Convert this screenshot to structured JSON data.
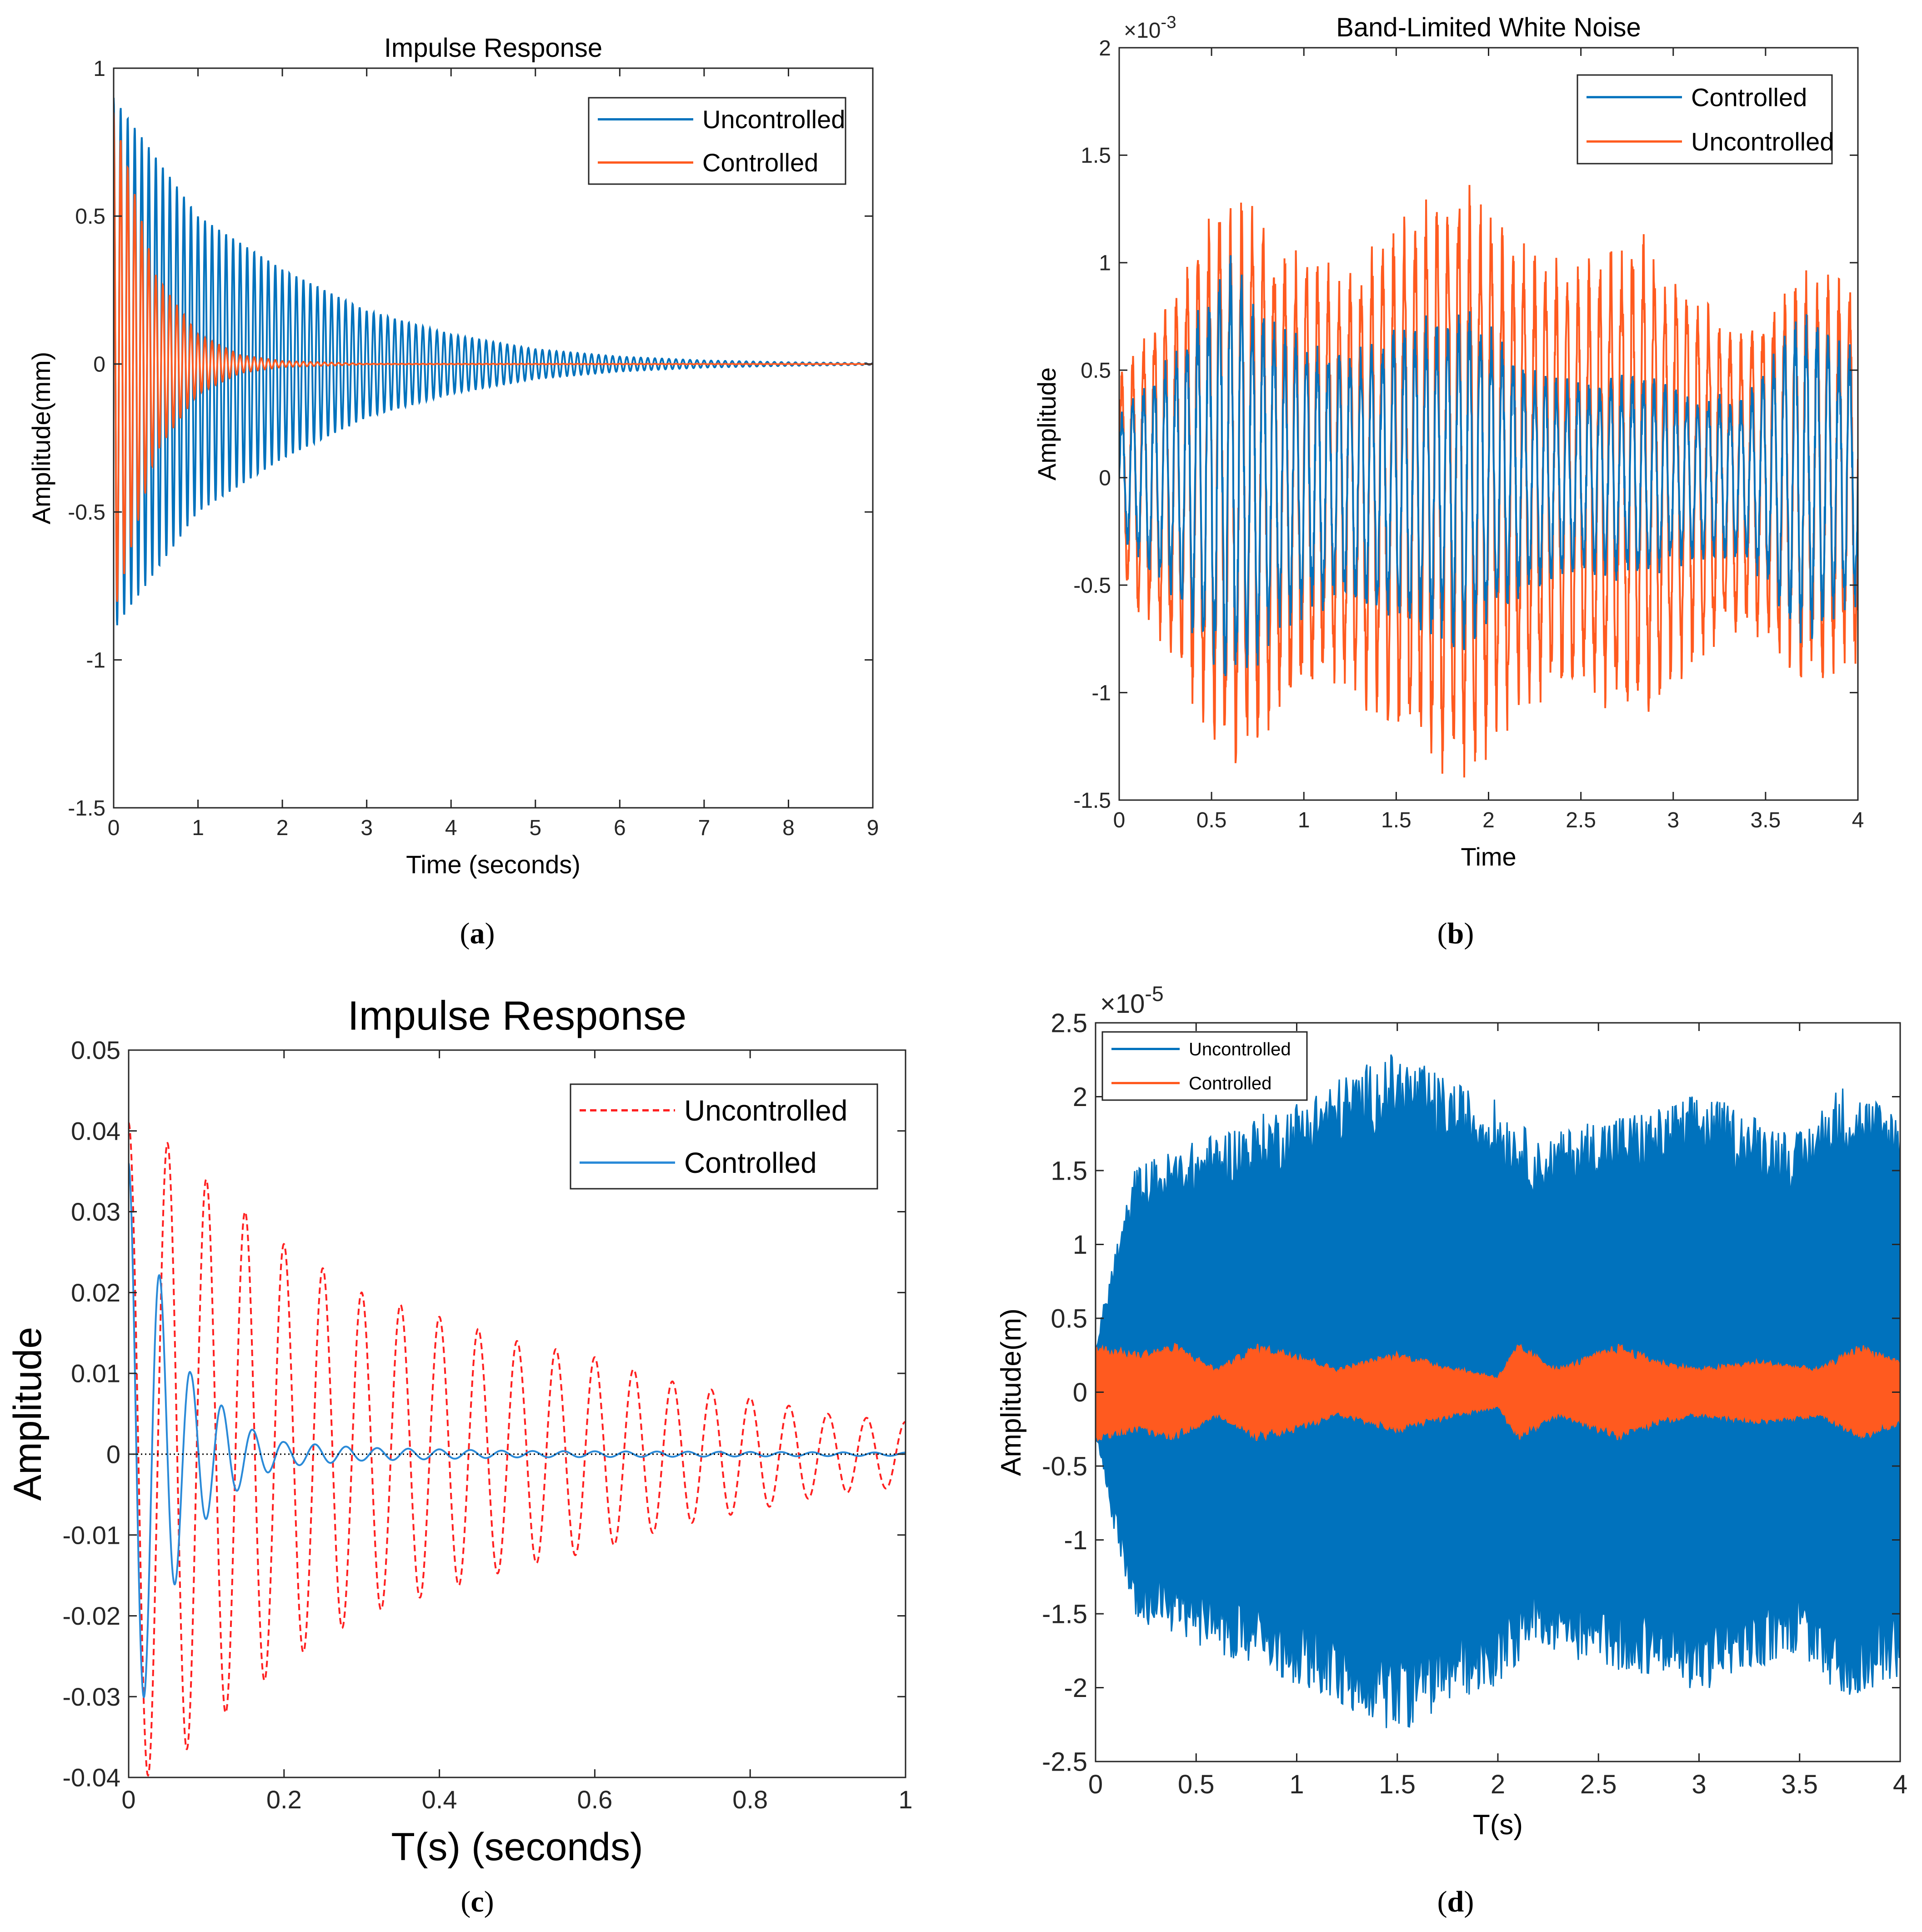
{
  "figure": {
    "panels": [
      "a",
      "b",
      "c",
      "d"
    ]
  },
  "chart_data": [
    {
      "id": "a",
      "caption_letter": "a",
      "type": "line",
      "title": "Impulse Response",
      "xlabel": "Time (seconds)",
      "ylabel": "Amplitude(mm)",
      "xlim": [
        0,
        9
      ],
      "ylim": [
        -1.5,
        1
      ],
      "xticks": [
        0,
        1,
        2,
        3,
        4,
        5,
        6,
        7,
        8,
        9
      ],
      "xtick_labels": [
        "0",
        "1",
        "2",
        "3",
        "4",
        "5",
        "6",
        "7",
        "8",
        "9"
      ],
      "yticks": [
        -1.5,
        -1,
        -0.5,
        0,
        0.5,
        1
      ],
      "ytick_labels": [
        "-1.5",
        "-1",
        "-0.5",
        "0",
        "0.5",
        "1"
      ],
      "exponent_label": "",
      "grid": false,
      "legend_position": "top-right",
      "series": [
        {
          "name": "Uncontrolled",
          "color": "#0072BD",
          "style": "solid",
          "model": {
            "kind": "decaying_oscillation",
            "amplitude": 0.95,
            "decay_rate": 0.62,
            "frequency_hz": 12.0,
            "envelope_points": [
              [
                0,
                0.9
              ],
              [
                1,
                0.5
              ],
              [
                2,
                0.32
              ],
              [
                3,
                0.18
              ],
              [
                4,
                0.1
              ],
              [
                5,
                0.05
              ],
              [
                6,
                0.025
              ],
              [
                7,
                0.012
              ],
              [
                8,
                0.006
              ],
              [
                9,
                0.003
              ]
            ]
          }
        },
        {
          "name": "Controlled",
          "color": "#FF5A1F",
          "style": "solid",
          "model": {
            "kind": "decaying_oscillation",
            "amplitude": 0.95,
            "decay_rate": 2.3,
            "frequency_hz": 12.0,
            "envelope_points": [
              [
                0,
                0.85
              ],
              [
                0.5,
                0.3
              ],
              [
                1,
                0.1
              ],
              [
                1.5,
                0.03
              ],
              [
                2,
                0.01
              ],
              [
                3,
                0.001
              ]
            ]
          }
        }
      ]
    },
    {
      "id": "b",
      "caption_letter": "b",
      "type": "line",
      "title": "Band-Limited White Noise",
      "xlabel": "Time",
      "ylabel": "Amplitude",
      "xlim": [
        0,
        4
      ],
      "ylim": [
        -1.5,
        2
      ],
      "xticks": [
        0,
        0.5,
        1,
        1.5,
        2,
        2.5,
        3,
        3.5,
        4
      ],
      "xtick_labels": [
        "0",
        "0.5",
        "1",
        "1.5",
        "2",
        "2.5",
        "3",
        "3.5",
        "4"
      ],
      "yticks": [
        -1.5,
        -1,
        -0.5,
        0,
        0.5,
        1,
        1.5,
        2
      ],
      "ytick_labels": [
        "-1.5",
        "-1",
        "-0.5",
        "0",
        "0.5",
        "1",
        "1.5",
        "2"
      ],
      "exponent_label": "×10",
      "exponent_power": "-3",
      "grid": false,
      "legend_position": "top-right",
      "series": [
        {
          "name": "Uncontrolled",
          "color": "#FF5A1F",
          "style": "solid",
          "model": {
            "kind": "modulated_noise",
            "frequency_hz": 17.0,
            "envelope_points": [
              [
                0,
                0.5
              ],
              [
                0.3,
                0.9
              ],
              [
                0.6,
                1.4
              ],
              [
                0.9,
                1.1
              ],
              [
                1.2,
                1.0
              ],
              [
                1.5,
                1.2
              ],
              [
                1.85,
                1.45
              ],
              [
                2.2,
                1.1
              ],
              [
                2.5,
                1.0
              ],
              [
                2.8,
                1.2
              ],
              [
                3.1,
                0.9
              ],
              [
                3.4,
                0.7
              ],
              [
                3.7,
                1.0
              ],
              [
                4.0,
                0.9
              ]
            ]
          }
        },
        {
          "name": "Controlled",
          "color": "#0072BD",
          "style": "solid",
          "model": {
            "kind": "modulated_noise",
            "frequency_hz": 17.0,
            "envelope_points": [
              [
                0,
                0.3
              ],
              [
                0.3,
                0.6
              ],
              [
                0.6,
                1.05
              ],
              [
                0.9,
                0.7
              ],
              [
                1.2,
                0.6
              ],
              [
                1.5,
                0.7
              ],
              [
                1.85,
                0.85
              ],
              [
                2.2,
                0.55
              ],
              [
                2.5,
                0.45
              ],
              [
                2.8,
                0.5
              ],
              [
                3.1,
                0.4
              ],
              [
                3.4,
                0.4
              ],
              [
                3.7,
                0.8
              ],
              [
                4.0,
                0.6
              ]
            ]
          }
        }
      ],
      "legend_order": [
        "Controlled",
        "Uncontrolled"
      ]
    },
    {
      "id": "c",
      "caption_letter": "c",
      "type": "line",
      "title": "Impulse Response",
      "xlabel": "T(s) (seconds)",
      "ylabel": "Amplitude",
      "xlim": [
        0,
        1
      ],
      "ylim": [
        -0.04,
        0.05
      ],
      "xticks": [
        0,
        0.2,
        0.4,
        0.6,
        0.8,
        1
      ],
      "xtick_labels": [
        "0",
        "0.2",
        "0.4",
        "0.6",
        "0.8",
        "1"
      ],
      "yticks": [
        -0.04,
        -0.03,
        -0.02,
        -0.01,
        0,
        0.01,
        0.02,
        0.03,
        0.04,
        0.05
      ],
      "ytick_labels": [
        "-0.04",
        "-0.03",
        "-0.02",
        "-0.01",
        "0",
        "0.01",
        "0.02",
        "0.03",
        "0.04",
        "0.05"
      ],
      "exponent_label": "",
      "grid": false,
      "legend_position": "top-right",
      "series": [
        {
          "name": "Uncontrolled",
          "color": "#FF2020",
          "style": "dashed",
          "model": {
            "kind": "decaying_oscillation",
            "frequency_hz": 20.0,
            "envelope_points": [
              [
                0,
                0.041
              ],
              [
                0.06,
                0.038
              ],
              [
                0.1,
                0.034
              ],
              [
                0.2,
                0.026
              ],
              [
                0.3,
                0.02
              ],
              [
                0.4,
                0.017
              ],
              [
                0.5,
                0.014
              ],
              [
                0.6,
                0.012
              ],
              [
                0.7,
                0.009
              ],
              [
                0.8,
                0.007
              ],
              [
                0.9,
                0.005
              ],
              [
                1.0,
                0.004
              ]
            ]
          }
        },
        {
          "name": "Controlled",
          "color": "#2A8AD8",
          "style": "solid",
          "model": {
            "kind": "decaying_oscillation",
            "frequency_hz": 25.0,
            "envelope_points": [
              [
                0,
                0.036
              ],
              [
                0.02,
                0.03
              ],
              [
                0.04,
                0.022
              ],
              [
                0.08,
                0.01
              ],
              [
                0.12,
                0.006
              ],
              [
                0.16,
                0.003
              ],
              [
                0.2,
                0.0015
              ],
              [
                0.3,
                0.0008
              ],
              [
                0.5,
                0.0004
              ],
              [
                1.0,
                0.0002
              ]
            ]
          }
        }
      ],
      "zero_line": true
    },
    {
      "id": "d",
      "caption_letter": "d",
      "type": "area",
      "title": "",
      "xlabel": "T(s)",
      "ylabel": "Amplitude(m)",
      "xlim": [
        0,
        4
      ],
      "ylim": [
        -2.5,
        2.5
      ],
      "xticks": [
        0,
        0.5,
        1,
        1.5,
        2,
        2.5,
        3,
        3.5,
        4
      ],
      "xtick_labels": [
        "0",
        "0.5",
        "1",
        "1.5",
        "2",
        "2.5",
        "3",
        "3.5",
        "4"
      ],
      "yticks": [
        -2.5,
        -2,
        -1.5,
        -1,
        -0.5,
        0,
        0.5,
        1,
        1.5,
        2,
        2.5
      ],
      "ytick_labels": [
        "-2.5",
        "-2",
        "-1.5",
        "-1",
        "-0.5",
        "0",
        "0.5",
        "1",
        "1.5",
        "2",
        "2.5"
      ],
      "exponent_label": "×10",
      "exponent_power": "-5",
      "grid": false,
      "legend_position": "top-left",
      "series": [
        {
          "name": "Uncontrolled",
          "color": "#0072BD",
          "style": "solid",
          "model": {
            "kind": "dense_envelope",
            "envelope_points": [
              [
                0,
                0.3
              ],
              [
                0.1,
                0.9
              ],
              [
                0.2,
                1.4
              ],
              [
                0.5,
                1.55
              ],
              [
                0.8,
                1.7
              ],
              [
                1.0,
                1.8
              ],
              [
                1.3,
                2.0
              ],
              [
                1.5,
                2.1
              ],
              [
                1.8,
                1.9
              ],
              [
                2.0,
                1.8
              ],
              [
                2.2,
                1.55
              ],
              [
                2.5,
                1.7
              ],
              [
                2.8,
                1.75
              ],
              [
                3.0,
                1.85
              ],
              [
                3.2,
                1.75
              ],
              [
                3.5,
                1.6
              ],
              [
                3.7,
                1.9
              ],
              [
                4.0,
                1.75
              ]
            ]
          }
        },
        {
          "name": "Controlled",
          "color": "#FF5A1F",
          "style": "solid",
          "model": {
            "kind": "dense_envelope",
            "envelope_points": [
              [
                0,
                0.3
              ],
              [
                0.2,
                0.25
              ],
              [
                0.4,
                0.3
              ],
              [
                0.6,
                0.15
              ],
              [
                0.8,
                0.3
              ],
              [
                1.0,
                0.25
              ],
              [
                1.2,
                0.15
              ],
              [
                1.5,
                0.25
              ],
              [
                1.8,
                0.15
              ],
              [
                2.0,
                0.1
              ],
              [
                2.1,
                0.3
              ],
              [
                2.3,
                0.15
              ],
              [
                2.6,
                0.3
              ],
              [
                2.8,
                0.2
              ],
              [
                3.0,
                0.15
              ],
              [
                3.3,
                0.2
              ],
              [
                3.6,
                0.15
              ],
              [
                3.8,
                0.3
              ],
              [
                4.0,
                0.2
              ]
            ]
          }
        }
      ]
    }
  ]
}
